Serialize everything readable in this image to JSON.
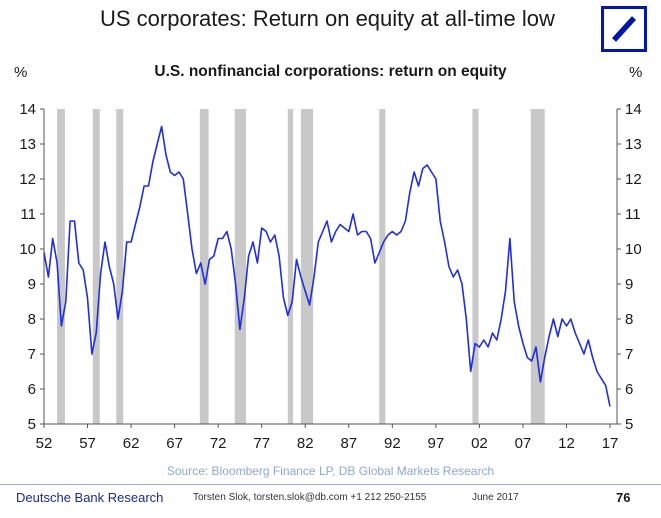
{
  "header": {
    "title": "US corporates: Return on equity at all-time low",
    "logo_icon": "deutsche-bank-slash-logo"
  },
  "chart_data": {
    "type": "line",
    "title": "",
    "subtitle": "U.S. nonfinancial corporations: return on equity",
    "ylabel_left": "%",
    "ylabel_right": "%",
    "ylim": [
      5,
      14
    ],
    "xlim": [
      1952,
      2017.8
    ],
    "y_ticks": [
      5,
      6,
      7,
      8,
      9,
      10,
      11,
      12,
      13,
      14
    ],
    "x_ticks": [
      1952,
      1957,
      1962,
      1967,
      1972,
      1977,
      1982,
      1987,
      1992,
      1997,
      2002,
      2007,
      2012,
      2017
    ],
    "x_tick_labels": [
      "52",
      "57",
      "62",
      "67",
      "72",
      "77",
      "82",
      "87",
      "92",
      "97",
      "02",
      "07",
      "12",
      "17"
    ],
    "grid": false,
    "line_color": "#1f2ee0",
    "recession_color": "#c8c8c8",
    "recessions": [
      [
        1953.5,
        1954.4
      ],
      [
        1957.6,
        1958.4
      ],
      [
        1960.3,
        1961.1
      ],
      [
        1969.9,
        1970.9
      ],
      [
        1973.9,
        1975.2
      ],
      [
        1980.0,
        1980.6
      ],
      [
        1981.5,
        1982.9
      ],
      [
        1990.5,
        1991.2
      ],
      [
        2001.2,
        2001.9
      ],
      [
        2007.9,
        2009.5
      ]
    ],
    "series": [
      {
        "name": "",
        "x": [
          1952.0,
          1952.5,
          1953.0,
          1953.5,
          1954.0,
          1954.5,
          1955.0,
          1955.5,
          1956.0,
          1956.5,
          1957.0,
          1957.5,
          1958.0,
          1958.5,
          1959.0,
          1959.5,
          1960.0,
          1960.5,
          1961.0,
          1961.5,
          1962.0,
          1962.5,
          1963.0,
          1963.5,
          1964.0,
          1964.5,
          1965.0,
          1965.5,
          1966.0,
          1966.5,
          1967.0,
          1967.5,
          1968.0,
          1968.5,
          1969.0,
          1969.5,
          1970.0,
          1970.5,
          1971.0,
          1971.5,
          1972.0,
          1972.5,
          1973.0,
          1973.5,
          1974.0,
          1974.5,
          1975.0,
          1975.5,
          1976.0,
          1976.5,
          1977.0,
          1977.5,
          1978.0,
          1978.5,
          1979.0,
          1979.5,
          1980.0,
          1980.5,
          1981.0,
          1981.5,
          1982.0,
          1982.5,
          1983.0,
          1983.5,
          1984.0,
          1984.5,
          1985.0,
          1985.5,
          1986.0,
          1986.5,
          1987.0,
          1987.5,
          1988.0,
          1988.5,
          1989.0,
          1989.5,
          1990.0,
          1990.5,
          1991.0,
          1991.5,
          1992.0,
          1992.5,
          1993.0,
          1993.5,
          1994.0,
          1994.5,
          1995.0,
          1995.5,
          1996.0,
          1996.5,
          1997.0,
          1997.5,
          1998.0,
          1998.5,
          1999.0,
          1999.5,
          2000.0,
          2000.5,
          2001.0,
          2001.5,
          2002.0,
          2002.5,
          2003.0,
          2003.5,
          2004.0,
          2004.5,
          2005.0,
          2005.5,
          2006.0,
          2006.5,
          2007.0,
          2007.5,
          2008.0,
          2008.5,
          2009.0,
          2009.5,
          2010.0,
          2010.5,
          2011.0,
          2011.5,
          2012.0,
          2012.5,
          2013.0,
          2013.5,
          2014.0,
          2014.5,
          2015.0,
          2015.5,
          2016.0,
          2016.5,
          2017.0
        ],
        "values": [
          9.9,
          9.2,
          10.3,
          9.6,
          7.8,
          8.5,
          10.8,
          10.8,
          9.6,
          9.4,
          8.6,
          7.0,
          7.6,
          9.3,
          10.2,
          9.5,
          9.0,
          8.0,
          8.8,
          10.2,
          10.2,
          10.7,
          11.2,
          11.8,
          11.8,
          12.5,
          13.0,
          13.5,
          12.7,
          12.2,
          12.1,
          12.2,
          12.0,
          11.0,
          10.0,
          9.3,
          9.6,
          9.0,
          9.7,
          9.8,
          10.3,
          10.3,
          10.5,
          10.0,
          9.0,
          7.7,
          8.6,
          9.8,
          10.2,
          9.6,
          10.6,
          10.5,
          10.2,
          10.4,
          9.8,
          8.6,
          8.1,
          8.5,
          9.7,
          9.2,
          8.8,
          8.4,
          9.2,
          10.2,
          10.5,
          10.8,
          10.2,
          10.5,
          10.7,
          10.6,
          10.5,
          11.0,
          10.4,
          10.5,
          10.5,
          10.3,
          9.6,
          9.9,
          10.2,
          10.4,
          10.5,
          10.4,
          10.5,
          10.8,
          11.6,
          12.2,
          11.8,
          12.3,
          12.4,
          12.2,
          12.0,
          10.8,
          10.2,
          9.5,
          9.2,
          9.4,
          9.0,
          8.0,
          6.5,
          7.3,
          7.2,
          7.4,
          7.2,
          7.6,
          7.4,
          8.0,
          8.8,
          10.3,
          8.5,
          7.8,
          7.3,
          6.9,
          6.8,
          7.2,
          6.2,
          6.9,
          7.5,
          8.0,
          7.5,
          8.0,
          7.8,
          8.0,
          7.6,
          7.3,
          7.0,
          7.4,
          6.9,
          6.5,
          6.3,
          6.1,
          5.5
        ]
      }
    ],
    "source": "Source: Bloomberg Finance LP, DB Global Markets Research"
  },
  "footer": {
    "brand": "Deutsche Bank Research",
    "author": "Torsten Slok, torsten.slok@db.com +1 212 250-2155",
    "date": "June 2017",
    "page": "76"
  }
}
